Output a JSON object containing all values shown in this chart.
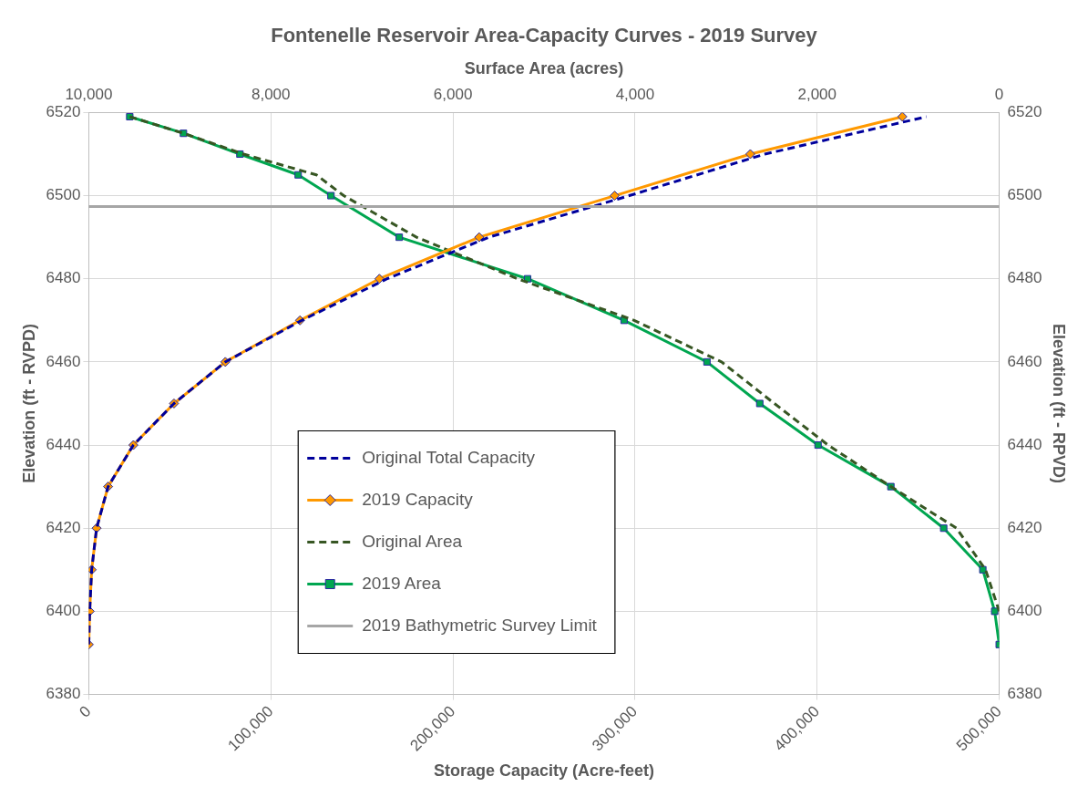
{
  "chart_data": {
    "type": "line",
    "title": "Fontenelle Reservoir Area-Capacity Curves - 2019 Survey",
    "xlabel": "Storage Capacity (Acre-feet)",
    "x2label": "Surface Area (acres)",
    "ylabel": "Elevation (ft - RVPD)",
    "y2label": "Elevation (ft - RPVD)",
    "xlim": [
      0,
      500000
    ],
    "xticks": [
      {
        "value": 0,
        "label": "0"
      },
      {
        "value": 100000,
        "label": "100,000"
      },
      {
        "value": 200000,
        "label": "200,000"
      },
      {
        "value": 300000,
        "label": "300,000"
      },
      {
        "value": 400000,
        "label": "400,000"
      },
      {
        "value": 500000,
        "label": "500,000"
      }
    ],
    "x2lim": [
      10000,
      0
    ],
    "x2ticks": [
      {
        "value": 10000,
        "label": "10,000"
      },
      {
        "value": 8000,
        "label": "8,000"
      },
      {
        "value": 6000,
        "label": "6,000"
      },
      {
        "value": 4000,
        "label": "4,000"
      },
      {
        "value": 2000,
        "label": "2,000"
      },
      0
    ],
    "ylim": [
      6380,
      6520
    ],
    "yticks": [
      6380,
      6400,
      6420,
      6440,
      6460,
      6480,
      6500,
      6520
    ],
    "y2lim": [
      6380,
      6520
    ],
    "y2ticks": [
      6380,
      6400,
      6420,
      6440,
      6460,
      6480,
      6500,
      6520
    ],
    "grid": true,
    "legend": "bottom left",
    "series": [
      {
        "name": "Original Total Capacity",
        "color": "#00009c",
        "line_style": "dashed",
        "marker": "none",
        "x": [
          0,
          500,
          1600,
          4300,
          10600,
          24500,
          46800,
          75000,
          117000,
          163800,
          219700,
          296800,
          371300,
          460000
        ],
        "values": [
          6392,
          6400,
          6410,
          6420,
          6430,
          6440,
          6450,
          6460,
          6470,
          6480,
          6490,
          6500,
          6510,
          6519
        ]
      },
      {
        "name": "2019 Capacity",
        "color": "#ff9900",
        "line_style": "solid",
        "marker": "diamond",
        "x": [
          0,
          500,
          1600,
          4300,
          10600,
          24500,
          46800,
          75000,
          116000,
          159600,
          214400,
          288800,
          363300,
          446800
        ],
        "values": [
          6392,
          6400,
          6410,
          6420,
          6430,
          6440,
          6450,
          6460,
          6470,
          6480,
          6490,
          6500,
          6510,
          6519
        ]
      },
      {
        "name": "Original Area",
        "color": "#375623",
        "line_style": "dashed",
        "marker": "none",
        "axis": "x2",
        "x": [
          9550,
          8960,
          8300,
          7500,
          7200,
          6400,
          5290,
          4010,
          3050,
          2470,
          1880,
          1190,
          470,
          150,
          0
        ],
        "values": [
          6519,
          6515,
          6510,
          6505,
          6500,
          6490,
          6480,
          6470,
          6460,
          6450,
          6440,
          6430,
          6420,
          6410,
          6400
        ]
      },
      {
        "name": "2019 Area",
        "color": "#00a650",
        "line_style": "solid",
        "marker": "square",
        "axis": "x2",
        "x": [
          9550,
          8960,
          8340,
          7700,
          7340,
          6590,
          5180,
          4120,
          3210,
          2630,
          1990,
          1190,
          610,
          180,
          50,
          0
        ],
        "values": [
          6519,
          6515,
          6510,
          6505,
          6500,
          6490,
          6480,
          6470,
          6460,
          6450,
          6440,
          6430,
          6420,
          6410,
          6400,
          6392
        ]
      }
    ],
    "ref_lines": [
      {
        "axis": "y",
        "value": 6497.4,
        "label": "2019 Bathymetric Survey Limit",
        "color": "#a6a6a6"
      }
    ]
  }
}
